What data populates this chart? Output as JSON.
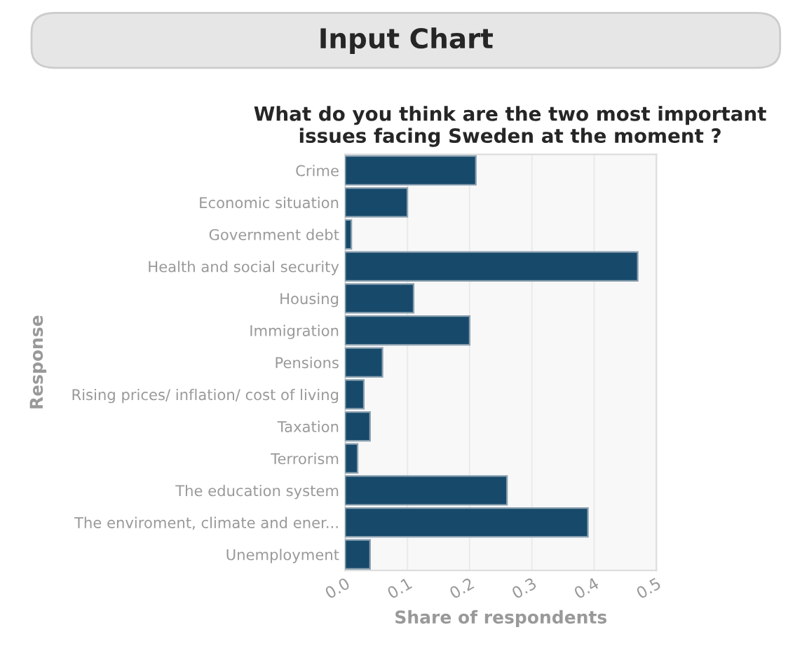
{
  "chart_data": {
    "type": "bar",
    "orientation": "horizontal",
    "title": "What do you think are the two most important\nissues facing Sweden at the moment ?",
    "annotations": [
      "Input Chart"
    ],
    "xlabel": "Share of respondents",
    "ylabel": "Response",
    "categories": [
      "Crime",
      "Economic situation",
      "Government debt",
      "Health and social security",
      "Housing",
      "Immigration",
      "Pensions",
      "Rising prices/ inflation/ cost of living",
      "Taxation",
      "Terrorism",
      "The education system",
      "The enviroment, climate and ener...",
      "Unemployment"
    ],
    "values": [
      0.21,
      0.1,
      0.01,
      0.47,
      0.11,
      0.2,
      0.06,
      0.03,
      0.04,
      0.02,
      0.26,
      0.39,
      0.04
    ],
    "color": "#17496a",
    "xlim": [
      0,
      0.5
    ],
    "xticks": [
      {
        "value": 0,
        "label": "0.0"
      },
      0.1,
      0.2,
      0.3,
      0.4,
      0.5
    ],
    "grid": "x"
  }
}
